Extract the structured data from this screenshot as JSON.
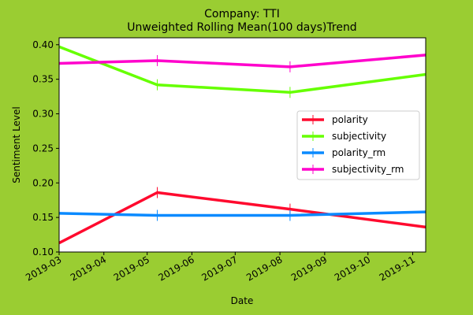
{
  "chart_data": {
    "type": "line",
    "title": "Company: TTI",
    "subtitle": "Unweighted Rolling Mean(100 days)Trend",
    "xlabel": "Date",
    "ylabel": "Sentiment Level",
    "xlim": [
      "2019-03-01",
      "2019-11-10"
    ],
    "ylim": [
      0.1,
      0.41
    ],
    "x_ticks": [
      "2019-03",
      "2019-04",
      "2019-05",
      "2019-06",
      "2019-07",
      "2019-08",
      "2019-09",
      "2019-10",
      "2019-11"
    ],
    "x_tick_dates": [
      "2019-03-01",
      "2019-04-01",
      "2019-05-01",
      "2019-06-01",
      "2019-07-01",
      "2019-08-01",
      "2019-09-01",
      "2019-10-01",
      "2019-11-01"
    ],
    "y_ticks": [
      "0.10",
      "0.15",
      "0.20",
      "0.25",
      "0.30",
      "0.35",
      "0.40"
    ],
    "y_tick_values": [
      0.1,
      0.15,
      0.2,
      0.25,
      0.3,
      0.35,
      0.4
    ],
    "grid": false,
    "legend_position": "right",
    "series": [
      {
        "name": "polarity",
        "color": "#FF0A2E",
        "x": [
          "2019-03-01",
          "2019-05-08",
          "2019-08-08",
          "2019-11-10"
        ],
        "values": [
          0.113,
          0.186,
          0.162,
          0.136
        ]
      },
      {
        "name": "subjectivity",
        "color": "#66FF00",
        "x": [
          "2019-03-01",
          "2019-05-08",
          "2019-08-08",
          "2019-11-10"
        ],
        "values": [
          0.397,
          0.342,
          0.331,
          0.357
        ]
      },
      {
        "name": "polarity_rm",
        "color": "#0A8AFF",
        "x": [
          "2019-03-01",
          "2019-05-08",
          "2019-08-08",
          "2019-11-10"
        ],
        "values": [
          0.156,
          0.153,
          0.153,
          0.158
        ]
      },
      {
        "name": "subjectivity_rm",
        "color": "#FF00CC",
        "x": [
          "2019-03-01",
          "2019-05-08",
          "2019-08-08",
          "2019-11-10"
        ],
        "values": [
          0.373,
          0.377,
          0.368,
          0.385
        ]
      }
    ]
  }
}
